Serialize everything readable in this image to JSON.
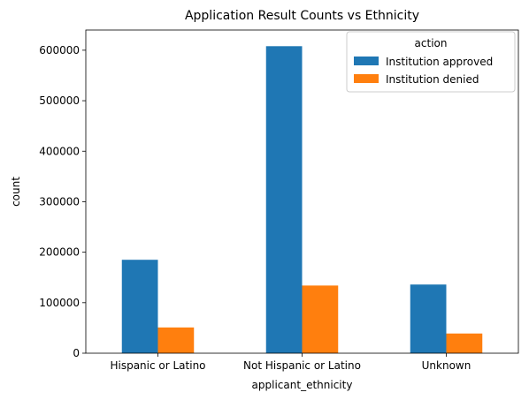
{
  "chart_data": {
    "type": "bar",
    "title": "Application Result Counts vs Ethnicity",
    "xlabel": "applicant_ethnicity",
    "ylabel": "count",
    "categories": [
      "Hispanic or Latino",
      "Not Hispanic or Latino",
      "Unknown"
    ],
    "series": [
      {
        "name": "Institution approved",
        "values": [
          185000,
          608000,
          136000
        ],
        "color": "#1f77b4"
      },
      {
        "name": "Institution denied",
        "values": [
          51000,
          134000,
          39000
        ],
        "color": "#ff7f0e"
      }
    ],
    "ylim": [
      0,
      640000
    ],
    "yticks": [
      0,
      100000,
      200000,
      300000,
      400000,
      500000,
      600000
    ],
    "ytick_labels": [
      "0",
      "100000",
      "200000",
      "300000",
      "400000",
      "500000",
      "600000"
    ],
    "legend": {
      "title": "action",
      "placement": "top-right"
    },
    "grid": false
  }
}
